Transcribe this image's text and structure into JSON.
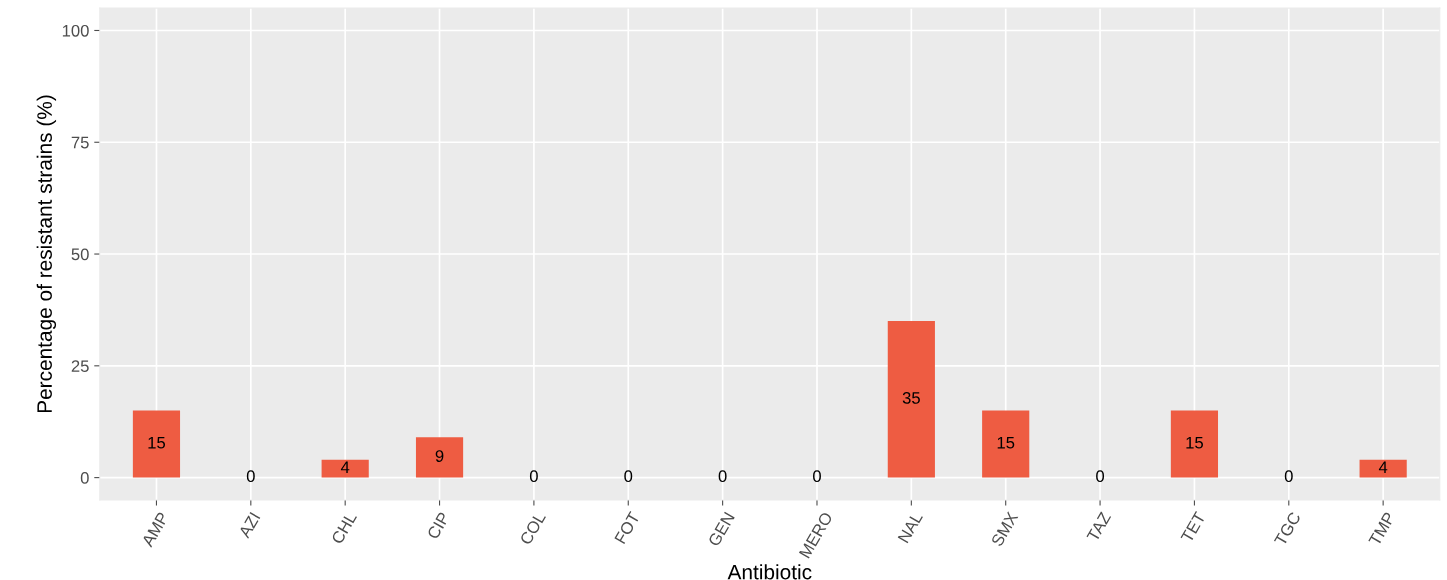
{
  "chart_data": {
    "type": "bar",
    "xlabel": "Antibiotic",
    "ylabel": "Percentage of resistant strains (%)",
    "categories": [
      "AMP",
      "AZI",
      "CHL",
      "CIP",
      "COL",
      "FOT",
      "GEN",
      "MERO",
      "NAL",
      "SMX",
      "TAZ",
      "TET",
      "TGC",
      "TMP"
    ],
    "values": [
      15,
      0,
      4,
      9,
      0,
      0,
      0,
      0,
      35,
      15,
      0,
      15,
      0,
      4
    ],
    "color": "#ee5c42",
    "ylim": [
      -5,
      105
    ],
    "yticks": [
      0,
      25,
      50,
      75,
      100
    ],
    "grid": true,
    "data_labels": true
  }
}
